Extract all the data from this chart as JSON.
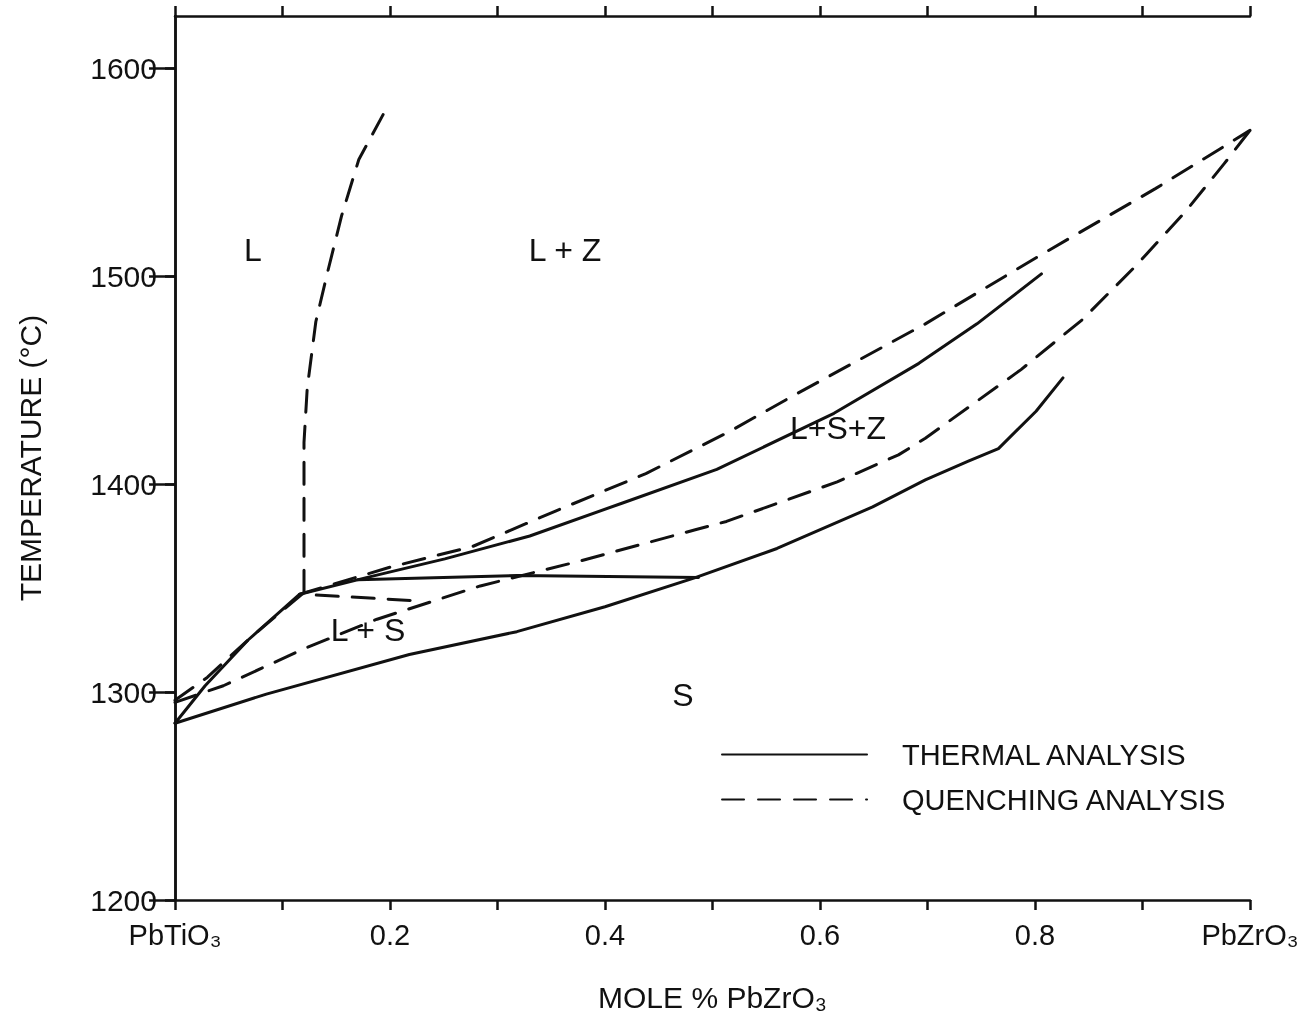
{
  "chart_data": {
    "type": "line",
    "xlabel": "MOLE % PbZrO₃",
    "ylabel": "TEMPERATURE (°C)",
    "xlim": [
      0,
      1
    ],
    "ylim": [
      1200,
      1625
    ],
    "xticks": [
      {
        "value": 0,
        "label": "PbTiO₃"
      },
      {
        "value": 0.1,
        "label": null
      },
      0.2,
      {
        "value": 0.3,
        "label": null
      },
      0.4,
      {
        "value": 0.5,
        "label": null
      },
      0.6,
      {
        "value": 0.7,
        "label": null
      },
      0.8,
      {
        "value": 0.9,
        "label": null
      },
      {
        "value": 1,
        "label": "PbZrO₃"
      }
    ],
    "yticks": [
      1200,
      1300,
      1400,
      1500,
      1600
    ],
    "marker": "none",
    "grid": false,
    "legend": "bottom right",
    "series": [
      {
        "name": "THERMAL ANALYSIS",
        "color": "#111111",
        "line_style": "solid",
        "x": [
          0,
          0.028,
          0.068,
          0.116,
          0.178,
          0.251,
          0.33,
          0.417,
          0.504,
          0.613,
          0.692,
          0.746,
          0.806
        ],
        "values": [
          1285,
          1303,
          1325,
          1347,
          1355,
          1364,
          1375,
          1391,
          1407,
          1434,
          1458,
          1477,
          1501
        ]
      },
      {
        "color": "#111111",
        "line_style": "solid",
        "x": [
          0,
          0.085,
          0.218,
          0.318,
          0.4,
          0.484,
          0.56,
          0.649,
          0.698,
          0.738,
          0.766,
          0.801,
          0.826
        ],
        "values": [
          1285,
          1299,
          1318,
          1329,
          1341,
          1355,
          1369,
          1389,
          1402,
          1411,
          1417,
          1435,
          1451
        ]
      },
      {
        "color": "#111111",
        "line_style": "solid",
        "x": [
          0.17,
          0.318,
          0.487
        ],
        "values": [
          1354,
          1356,
          1355
        ]
      },
      {
        "name": "QUENCHING ANALYSIS",
        "color": "#111111",
        "line_style": "dashed",
        "x": [
          0.12,
          0.12,
          0.123,
          0.131,
          0.142,
          0.155,
          0.171,
          0.194
        ],
        "values": [
          1348,
          1420,
          1446,
          1478,
          1502,
          1529,
          1556,
          1578
        ]
      },
      {
        "color": "#111111",
        "line_style": "dashed",
        "x": [
          0.116,
          0.2,
          0.277,
          0.354,
          0.438,
          0.515,
          0.577,
          0.698,
          0.805,
          0.912,
          1
        ],
        "values": [
          1347,
          1360,
          1370,
          1387,
          1405,
          1425,
          1443,
          1477,
          1510,
          1542,
          1570
        ]
      },
      {
        "color": "#111111",
        "line_style": "dashed",
        "x": [
          0,
          0.045,
          0.121,
          0.188,
          0.284,
          0.377,
          0.484,
          0.513,
          0.616,
          0.673,
          0.698,
          0.787,
          0.844,
          0.894,
          0.94,
          0.976,
          1
        ],
        "values": [
          1295,
          1303,
          1321,
          1335,
          1351,
          1363,
          1378,
          1382,
          1401,
          1414,
          1422,
          1455,
          1479,
          1505,
          1531,
          1554,
          1570
        ]
      },
      {
        "color": "#111111",
        "line_style": "dashed",
        "x": [
          0,
          0.03,
          0.07,
          0.118,
          0.22
        ],
        "values": [
          1296,
          1307,
          1326,
          1347,
          1344
        ]
      }
    ],
    "annotations": [
      "L",
      "L + Z",
      "L+S+Z",
      "L + S",
      "S"
    ]
  }
}
